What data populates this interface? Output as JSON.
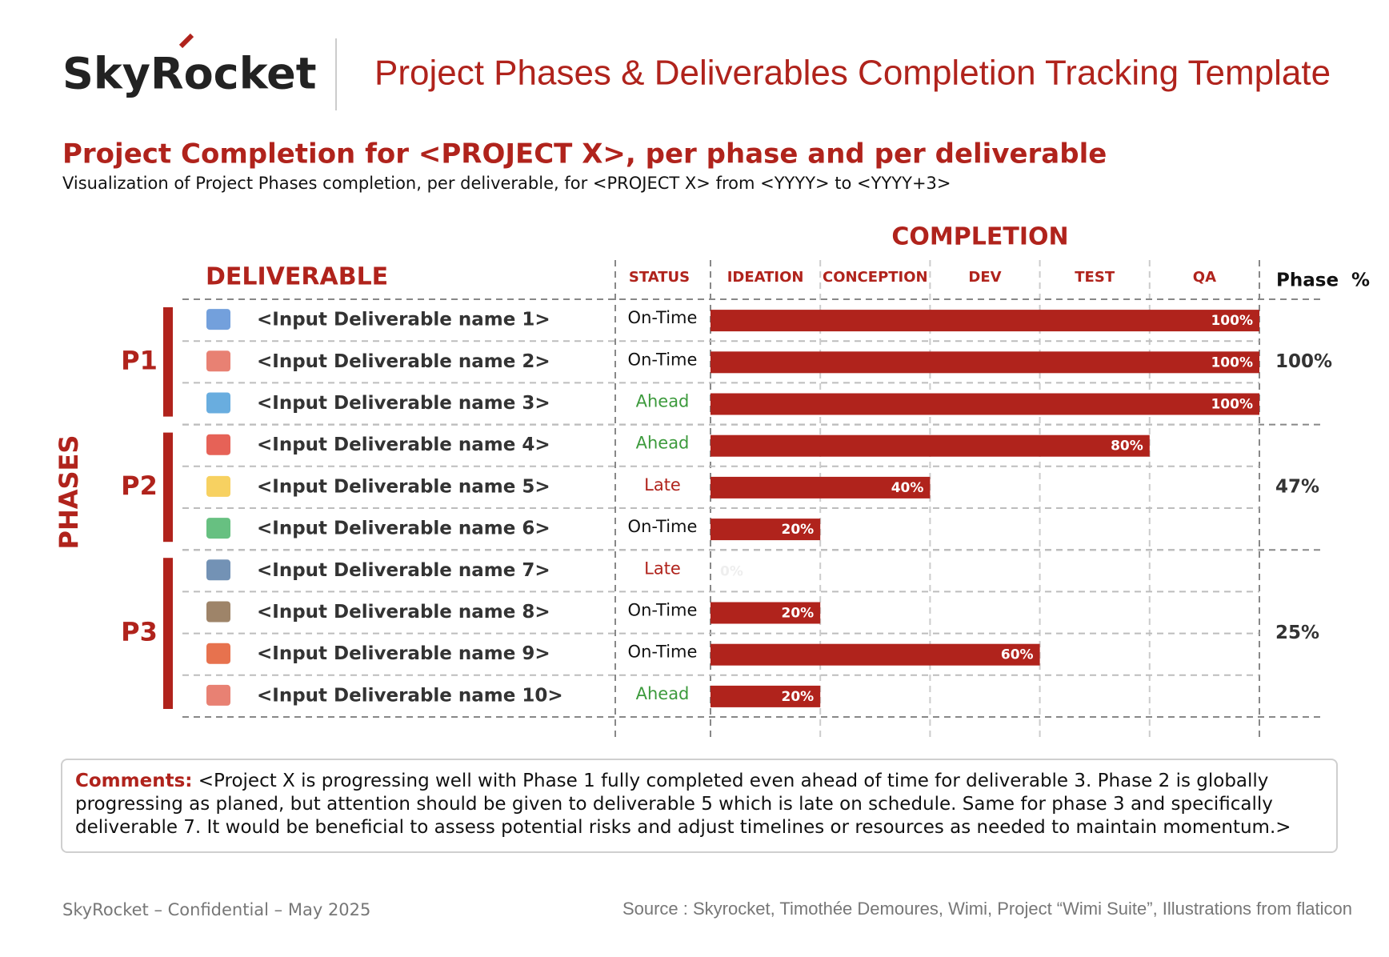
{
  "header": {
    "logo": "SkyRocket",
    "title": "Project Phases & Deliverables Completion Tracking Template"
  },
  "chart_data": {
    "type": "bar",
    "title": "Project Completion for <PROJECT X>, per phase and per deliverable",
    "subtitle": "Visualization of Project Phases completion, per deliverable, for <PROJECT X> from <YYYY> to <YYYY+3>",
    "axis_title": "COMPLETION",
    "deliverable_header": "DELIVERABLE",
    "status_header": "STATUS",
    "phase_header": "Phase  %",
    "phases_label": "PHASES",
    "stages": [
      "IDEATION",
      "CONCEPTION",
      "DEV",
      "TEST",
      "QA"
    ],
    "xlim": [
      0,
      100
    ],
    "categories": [
      "<Input Deliverable name 1>",
      "<Input Deliverable name 2>",
      "<Input Deliverable name 3>",
      "<Input Deliverable name 4>",
      "<Input Deliverable name 5>",
      "<Input Deliverable name 6>",
      "<Input Deliverable name 7>",
      "<Input Deliverable name 8>",
      "<Input Deliverable name 9>",
      "<Input Deliverable name 10>"
    ],
    "values": [
      100,
      100,
      100,
      80,
      40,
      20,
      0,
      20,
      60,
      20
    ],
    "value_labels": [
      "100%",
      "100%",
      "100%",
      "80%",
      "40%",
      "20%",
      "0%",
      "20%",
      "60%",
      "20%"
    ],
    "color": "#b0231c",
    "status": [
      "On-Time",
      "On-Time",
      "Ahead",
      "Ahead",
      "Late",
      "On-Time",
      "Late",
      "On-Time",
      "On-Time",
      "Ahead"
    ],
    "status_colors": {
      "On-Time": "#111111",
      "Ahead": "#3c9a3c",
      "Late": "#b0231c"
    },
    "phases": [
      {
        "name": "P1",
        "count": 3,
        "percent": "100%"
      },
      {
        "name": "P2",
        "count": 3,
        "percent": "47%"
      },
      {
        "name": "P3",
        "count": 4,
        "percent": "25%"
      }
    ]
  },
  "comments": {
    "label": "Comments:",
    "text": "<Project X is progressing well with Phase 1 fully completed even ahead of time for deliverable 3. Phase 2 is globally progressing as planed, but attention should be given to deliverable 5 which is late on schedule. Same for phase 3 and specifically deliverable 7. It would be beneficial to assess potential risks and adjust timelines or resources as needed to maintain momentum.>"
  },
  "footer": {
    "left": "SkyRocket – Confidential – May 2025",
    "source": "Source : Skyrocket, Timothée Demoures, Wimi, Project “Wimi Suite”, Illustrations from flaticon"
  }
}
